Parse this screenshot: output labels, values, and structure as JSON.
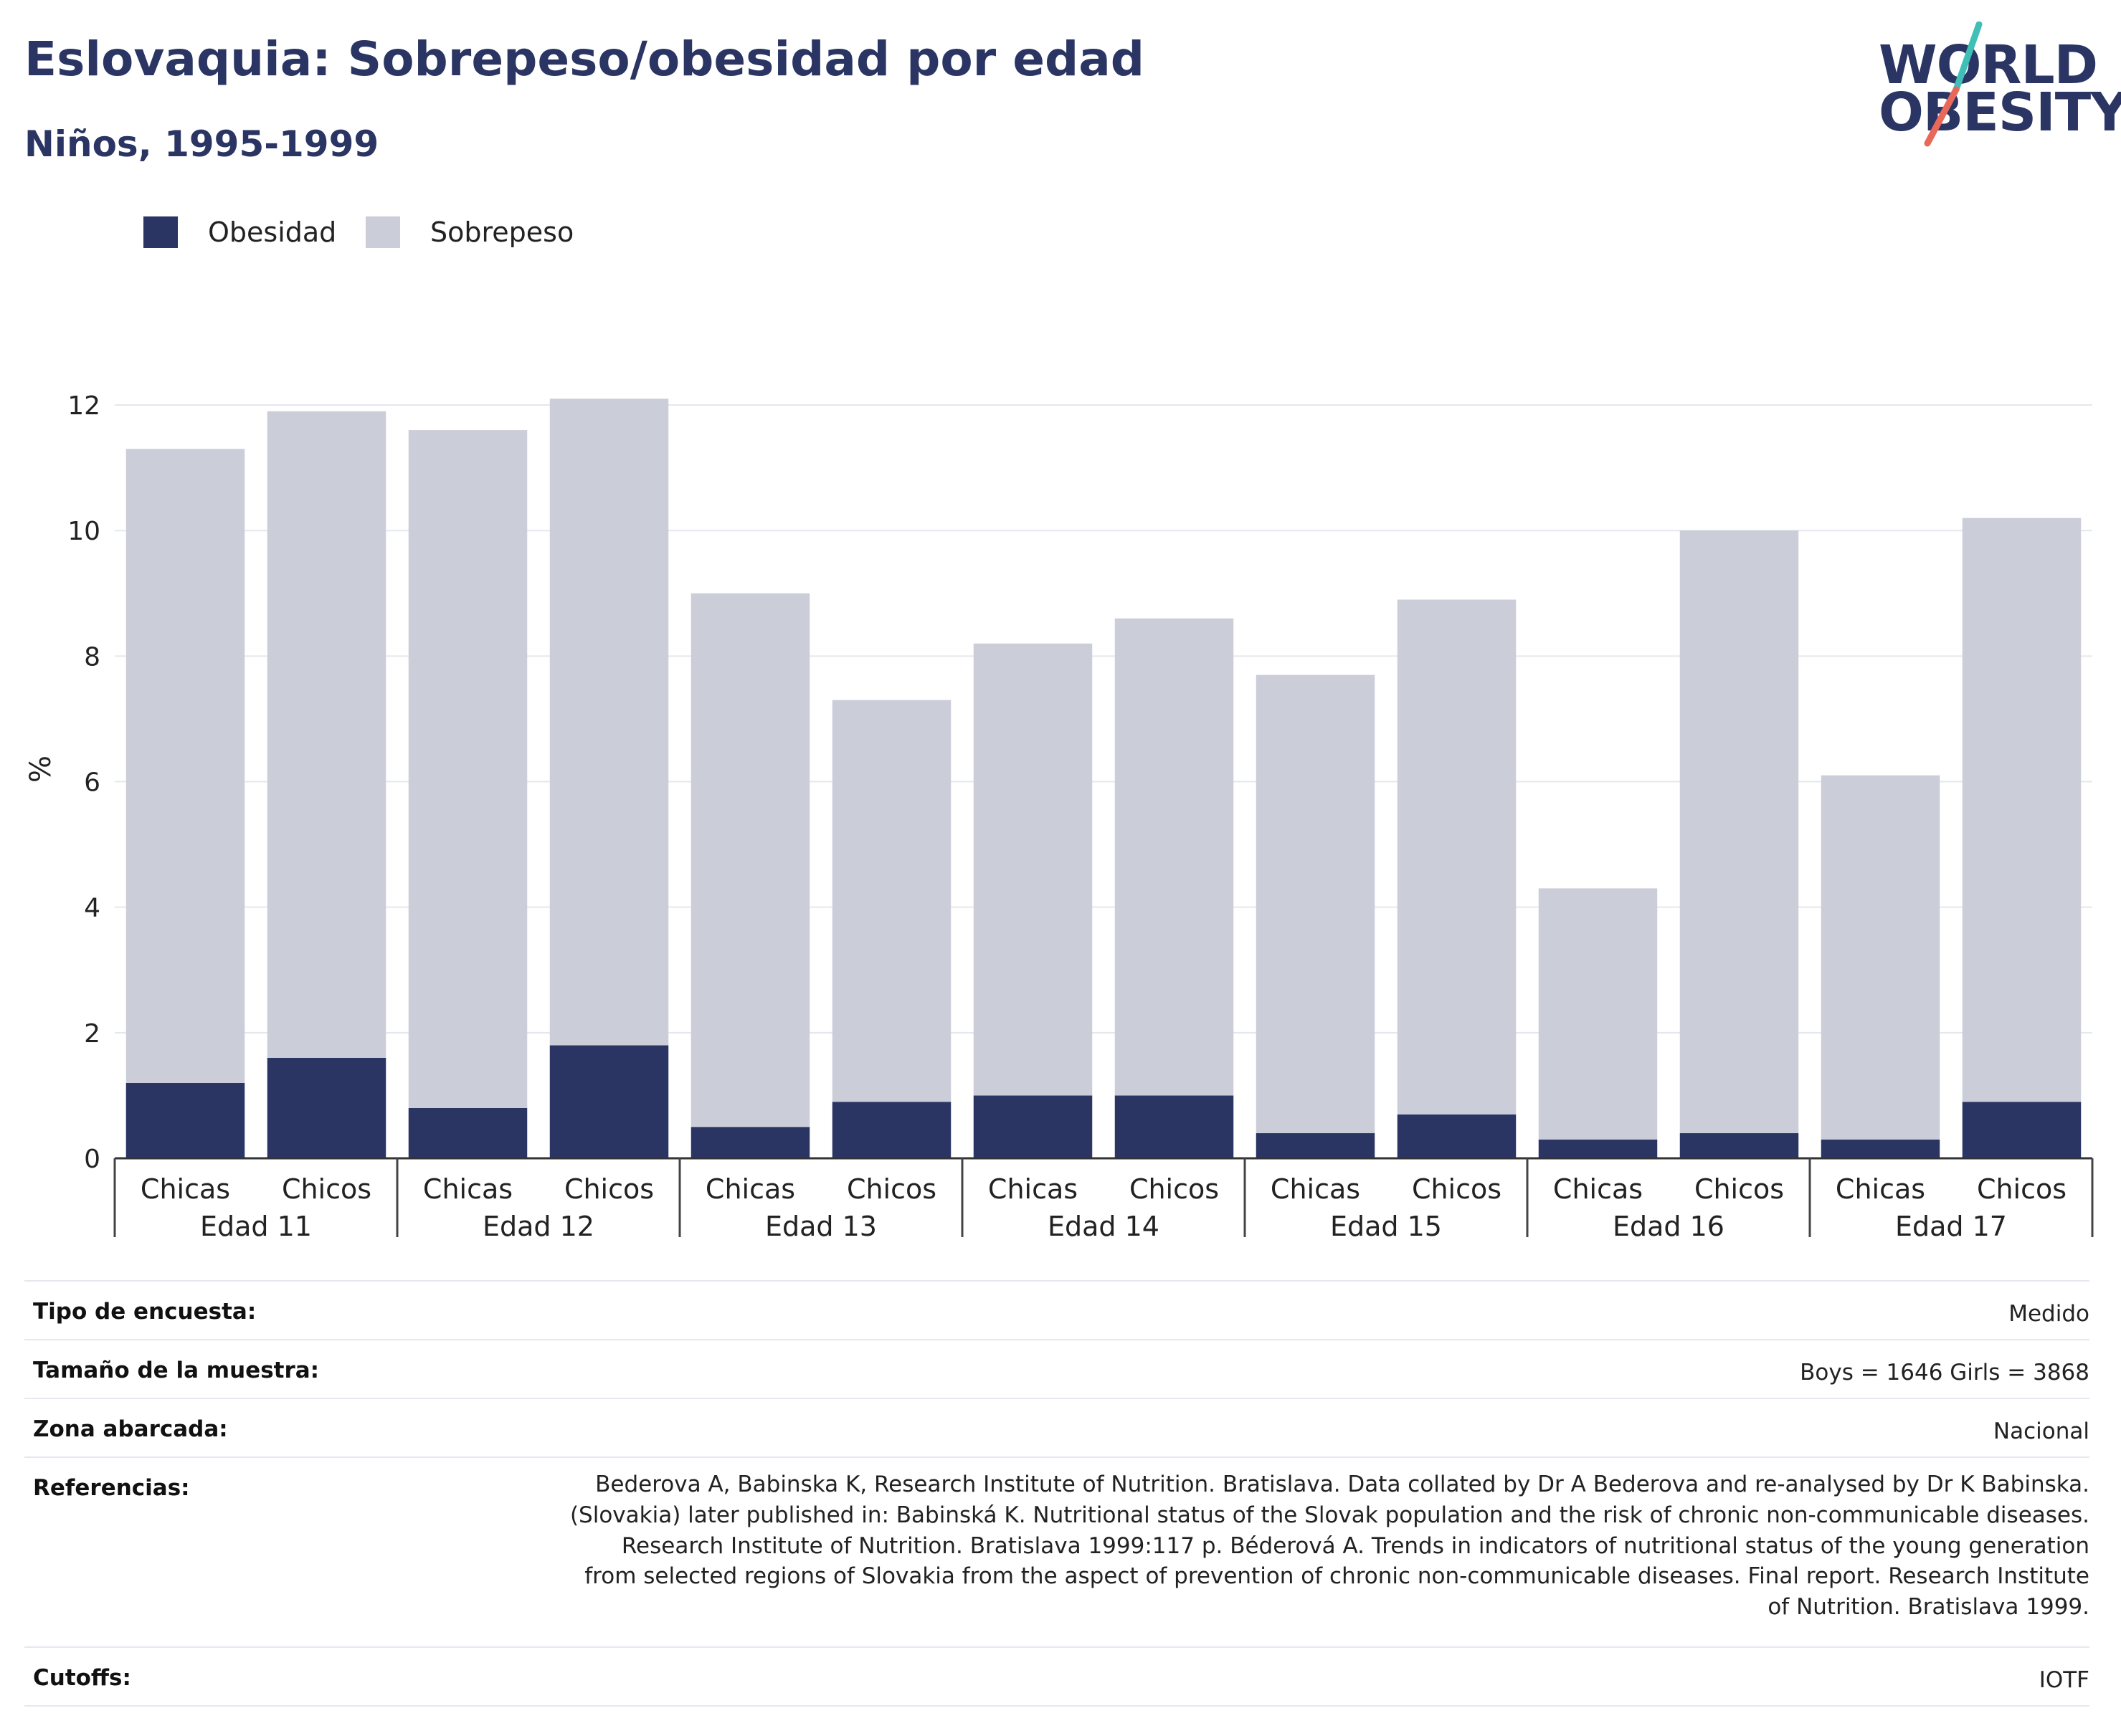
{
  "header": {
    "title": "Eslovaquia: Sobrepeso/obesidad por edad",
    "subtitle": "Niños, 1995-1999"
  },
  "logo": {
    "line1": "WORLD",
    "line2": "OBESITY",
    "accent_teal": "#3fbfb8",
    "accent_coral": "#e8695a"
  },
  "legend": {
    "items": [
      {
        "label": "Obesidad",
        "color": "#2b3563"
      },
      {
        "label": "Sobrepeso",
        "color": "#cbcdd9"
      }
    ]
  },
  "chart_data": {
    "type": "bar",
    "stacked": true,
    "ylabel": "%",
    "ylim": [
      0,
      12.4
    ],
    "yticks": [
      0,
      2,
      4,
      6,
      8,
      10,
      12
    ],
    "grid": true,
    "groups": [
      "Edad 11",
      "Edad 12",
      "Edad 13",
      "Edad 14",
      "Edad 15",
      "Edad 16",
      "Edad 17"
    ],
    "categories": [
      {
        "group": "Edad 11",
        "label": "Chicas"
      },
      {
        "group": "Edad 11",
        "label": "Chicos"
      },
      {
        "group": "Edad 12",
        "label": "Chicas"
      },
      {
        "group": "Edad 12",
        "label": "Chicos"
      },
      {
        "group": "Edad 13",
        "label": "Chicas"
      },
      {
        "group": "Edad 13",
        "label": "Chicos"
      },
      {
        "group": "Edad 14",
        "label": "Chicas"
      },
      {
        "group": "Edad 14",
        "label": "Chicos"
      },
      {
        "group": "Edad 15",
        "label": "Chicas"
      },
      {
        "group": "Edad 15",
        "label": "Chicos"
      },
      {
        "group": "Edad 16",
        "label": "Chicas"
      },
      {
        "group": "Edad 16",
        "label": "Chicos"
      },
      {
        "group": "Edad 17",
        "label": "Chicas"
      },
      {
        "group": "Edad 17",
        "label": "Chicos"
      }
    ],
    "series": [
      {
        "name": "Obesidad",
        "color": "#2b3563",
        "values": [
          1.2,
          1.6,
          0.8,
          1.8,
          0.5,
          0.9,
          1.0,
          1.0,
          0.4,
          0.7,
          0.3,
          0.4,
          0.3,
          0.9
        ]
      },
      {
        "name": "Sobrepeso",
        "color": "#cbcdd9",
        "values": [
          10.1,
          10.3,
          10.8,
          10.3,
          8.5,
          6.4,
          7.2,
          7.6,
          7.3,
          8.2,
          4.0,
          9.6,
          5.8,
          9.3
        ]
      }
    ]
  },
  "info_table": [
    {
      "label": "Tipo de encuesta:",
      "value": [
        "Medido"
      ]
    },
    {
      "label": "Tamaño de la muestra:",
      "value": [
        "Boys = 1646 Girls = 3868"
      ]
    },
    {
      "label": "Zona abarcada:",
      "value": [
        "Nacional"
      ]
    },
    {
      "label": "Referencias:",
      "value": [
        "Bederova A, Babinska K, Research Institute of Nutrition. Bratislava. Data collated by Dr A Bederova and re-analysed by Dr K Babinska.",
        "(Slovakia) later published in: Babinská K. Nutritional status of the Slovak population and the risk of chronic non-communicable diseases.",
        "Research Institute of Nutrition. Bratislava 1999:117 p. Béderová A. Trends in indicators of nutritional status of the young generation",
        "from selected regions of Slovakia from the aspect of prevention of chronic non-communicable diseases. Final report. Research Institute",
        "of Nutrition. Bratislava 1999."
      ]
    },
    {
      "label": "Cutoffs:",
      "value": [
        "IOTF"
      ]
    }
  ]
}
